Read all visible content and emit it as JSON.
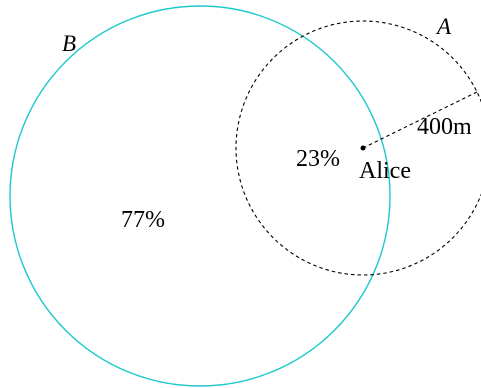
{
  "diagram": {
    "circle_b_label": "B",
    "circle_a_label": "A",
    "circle_b_percent": "77%",
    "overlap_percent": "23%",
    "point_label": "Alice",
    "radius_label": "400m",
    "colors": {
      "circle_b_stroke": "#1fc8cc",
      "circle_a_stroke": "#000000",
      "point": "#000000",
      "text": "#000000"
    }
  }
}
